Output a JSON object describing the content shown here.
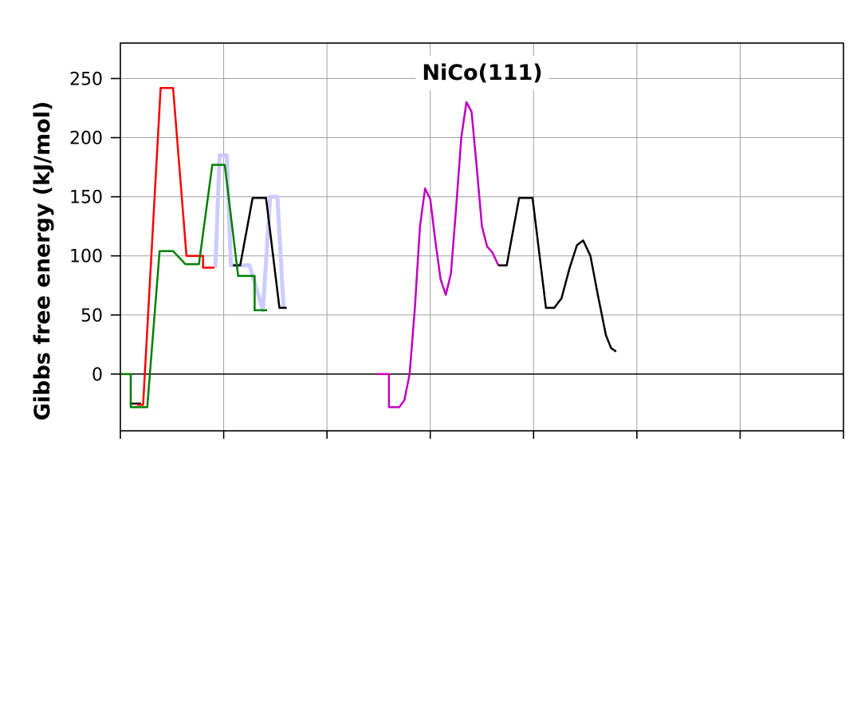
{
  "chart_data": {
    "type": "line",
    "title": "NiCo(111)",
    "xlabel": "",
    "ylabel": "Gibbs free energy (kJ/mol)",
    "xlim": [
      0,
      7
    ],
    "ylim": [
      -48,
      280
    ],
    "yticks": [
      0,
      50,
      100,
      150,
      200,
      250
    ],
    "xticks": [
      0,
      1,
      2,
      3,
      4,
      5,
      6,
      7
    ],
    "grid": true,
    "zero_line": true,
    "series": [
      {
        "color": "#ccccff",
        "width": 5,
        "points": [
          [
            0.92,
            90
          ],
          [
            0.96,
            185
          ],
          [
            1.03,
            185
          ],
          [
            1.07,
            92
          ],
          [
            1.14,
            92
          ],
          [
            1.25,
            92
          ],
          [
            1.38,
            54
          ],
          [
            1.45,
            150
          ],
          [
            1.52,
            150
          ],
          [
            1.58,
            56
          ]
        ]
      },
      {
        "color": "#000000",
        "width": 2.5,
        "points": [
          [
            1.09,
            92
          ],
          [
            1.16,
            92
          ],
          [
            1.28,
            149
          ],
          [
            1.41,
            149
          ],
          [
            1.54,
            56
          ],
          [
            1.61,
            56
          ]
        ]
      },
      {
        "color": "#000000",
        "width": 2.5,
        "points": [
          [
            0.09,
            -25
          ],
          [
            0.2,
            -25
          ]
        ]
      },
      {
        "color": "#ff0000",
        "width": 2.5,
        "points": [
          [
            0.16,
            -26
          ],
          [
            0.22,
            -26
          ],
          [
            0.39,
            242
          ],
          [
            0.51,
            242
          ],
          [
            0.64,
            100
          ],
          [
            0.8,
            100
          ],
          [
            0.8,
            90
          ],
          [
            0.91,
            90
          ]
        ]
      },
      {
        "color": "#008000",
        "width": 2.5,
        "points": [
          [
            0,
            0
          ],
          [
            0.1,
            0
          ],
          [
            0.1,
            -28
          ],
          [
            0.26,
            -28
          ],
          [
            0.38,
            104
          ],
          [
            0.51,
            104
          ],
          [
            0.63,
            93
          ],
          [
            0.76,
            93
          ],
          [
            0.89,
            177
          ],
          [
            1.01,
            177
          ],
          [
            1.14,
            83
          ],
          [
            1.3,
            83
          ],
          [
            1.3,
            54
          ],
          [
            1.42,
            54
          ]
        ]
      },
      {
        "color": "#bf00bf",
        "width": 2.5,
        "points": [
          [
            2.48,
            0
          ],
          [
            2.6,
            0
          ],
          [
            2.6,
            -28
          ],
          [
            2.7,
            -28
          ],
          [
            2.75,
            -22
          ],
          [
            2.8,
            0
          ],
          [
            2.85,
            55
          ],
          [
            2.9,
            125
          ],
          [
            2.95,
            157
          ],
          [
            3.0,
            148
          ],
          [
            3.05,
            112
          ],
          [
            3.1,
            80
          ],
          [
            3.15,
            67
          ],
          [
            3.2,
            85
          ],
          [
            3.25,
            140
          ],
          [
            3.3,
            200
          ],
          [
            3.35,
            230
          ],
          [
            3.4,
            222
          ],
          [
            3.45,
            175
          ],
          [
            3.5,
            125
          ],
          [
            3.55,
            108
          ],
          [
            3.6,
            103
          ],
          [
            3.66,
            92
          ]
        ]
      },
      {
        "color": "#000000",
        "width": 2.5,
        "points": [
          [
            3.66,
            92
          ],
          [
            3.74,
            92
          ],
          [
            3.86,
            149
          ],
          [
            3.99,
            149
          ],
          [
            4.12,
            56
          ],
          [
            4.2,
            56
          ],
          [
            4.27,
            64
          ],
          [
            4.35,
            90
          ],
          [
            4.42,
            109
          ],
          [
            4.48,
            113
          ],
          [
            4.55,
            100
          ],
          [
            4.62,
            68
          ],
          [
            4.7,
            33
          ],
          [
            4.75,
            22
          ],
          [
            4.8,
            19
          ]
        ]
      }
    ]
  }
}
